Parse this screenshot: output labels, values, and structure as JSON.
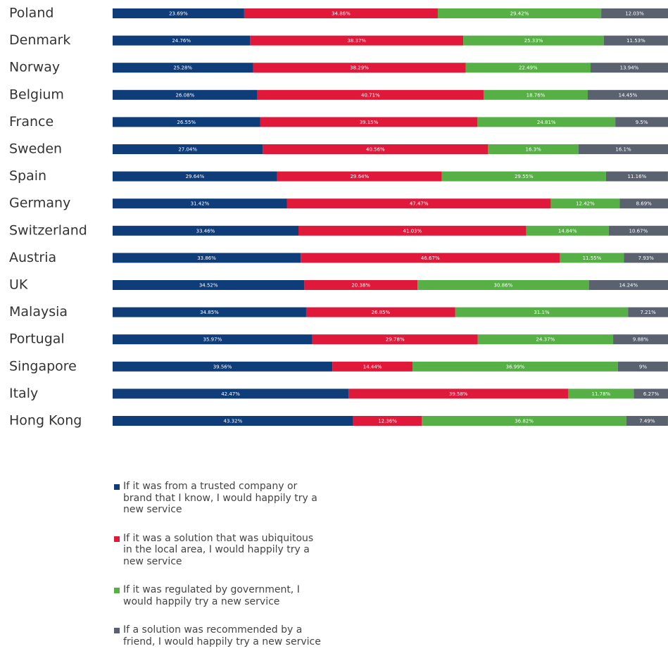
{
  "chart_data": {
    "type": "stacked-bar-horizontal",
    "categories": [
      "Poland",
      "Denmark",
      "Norway",
      "Belgium",
      "France",
      "Sweden",
      "Spain",
      "Germany",
      "Switzerland",
      "Austria",
      "UK",
      "Malaysia",
      "Portugal",
      "Singapore",
      "Italy",
      "Hong Kong"
    ],
    "xlim": [
      0,
      100
    ],
    "series": [
      {
        "name": "If it was from a trusted company or brand that I know, I would happily try a new service",
        "color": "#0f3d7a",
        "values": [
          23.69,
          24.76,
          25.28,
          26.08,
          26.55,
          27.04,
          29.64,
          31.42,
          33.46,
          33.86,
          34.52,
          34.85,
          35.97,
          39.56,
          42.47,
          43.32
        ],
        "value_labels": [
          "23.69%",
          "24.76%",
          "25.28%",
          "26.08%",
          "26.55%",
          "27.04%",
          "29.64%",
          "31.42%",
          "33.46%",
          "33.86%",
          "34.52%",
          "34.85%",
          "35.97%",
          "39.56%",
          "42.47%",
          "43.32%"
        ]
      },
      {
        "name": "If it was a solution that was ubiquitous in the local area, I would happily try a new service",
        "color": "#e0193a",
        "values": [
          34.86,
          38.37,
          38.29,
          40.71,
          39.15,
          40.56,
          29.64,
          47.47,
          41.03,
          46.67,
          20.38,
          26.85,
          29.78,
          14.44,
          39.58,
          12.36
        ],
        "value_labels": [
          "34.86%",
          "38.37%",
          "38.29%",
          "40.71%",
          "39.15%",
          "40.56%",
          "29.64%",
          "47.47%",
          "41.03%",
          "46.67%",
          "20.38%",
          "26.85%",
          "29.78%",
          "14.44%",
          "39.58%",
          "12.36%"
        ]
      },
      {
        "name": "If it was regulated by government, I would happily try a new service",
        "color": "#56b045",
        "values": [
          29.42,
          25.33,
          22.49,
          18.76,
          24.81,
          16.3,
          29.55,
          12.42,
          14.84,
          11.55,
          30.86,
          31.1,
          24.37,
          36.99,
          11.78,
          36.82
        ],
        "value_labels": [
          "29.42%",
          "25.33%",
          "22.49%",
          "18.76%",
          "24.81%",
          "16.3%",
          "29.55%",
          "12.42%",
          "14.84%",
          "11.55%",
          "30.86%",
          "31.1%",
          "24.37%",
          "36.99%",
          "11.78%",
          "36.82%"
        ]
      },
      {
        "name": "If a solution was recommended by a friend, I would happily try a new service",
        "color": "#5a6270",
        "values": [
          12.03,
          11.53,
          13.94,
          14.45,
          9.5,
          16.1,
          11.16,
          8.69,
          10.67,
          7.93,
          14.24,
          7.21,
          9.88,
          9,
          6.27,
          7.49
        ],
        "value_labels": [
          "12.03%",
          "11.53%",
          "13.94%",
          "14.45%",
          "9.5%",
          "16.1%",
          "11.16%",
          "8.69%",
          "10.67%",
          "7.93%",
          "14.24%",
          "7.21%",
          "9.88%",
          "9%",
          "6.27%",
          "7.49%"
        ]
      }
    ]
  }
}
